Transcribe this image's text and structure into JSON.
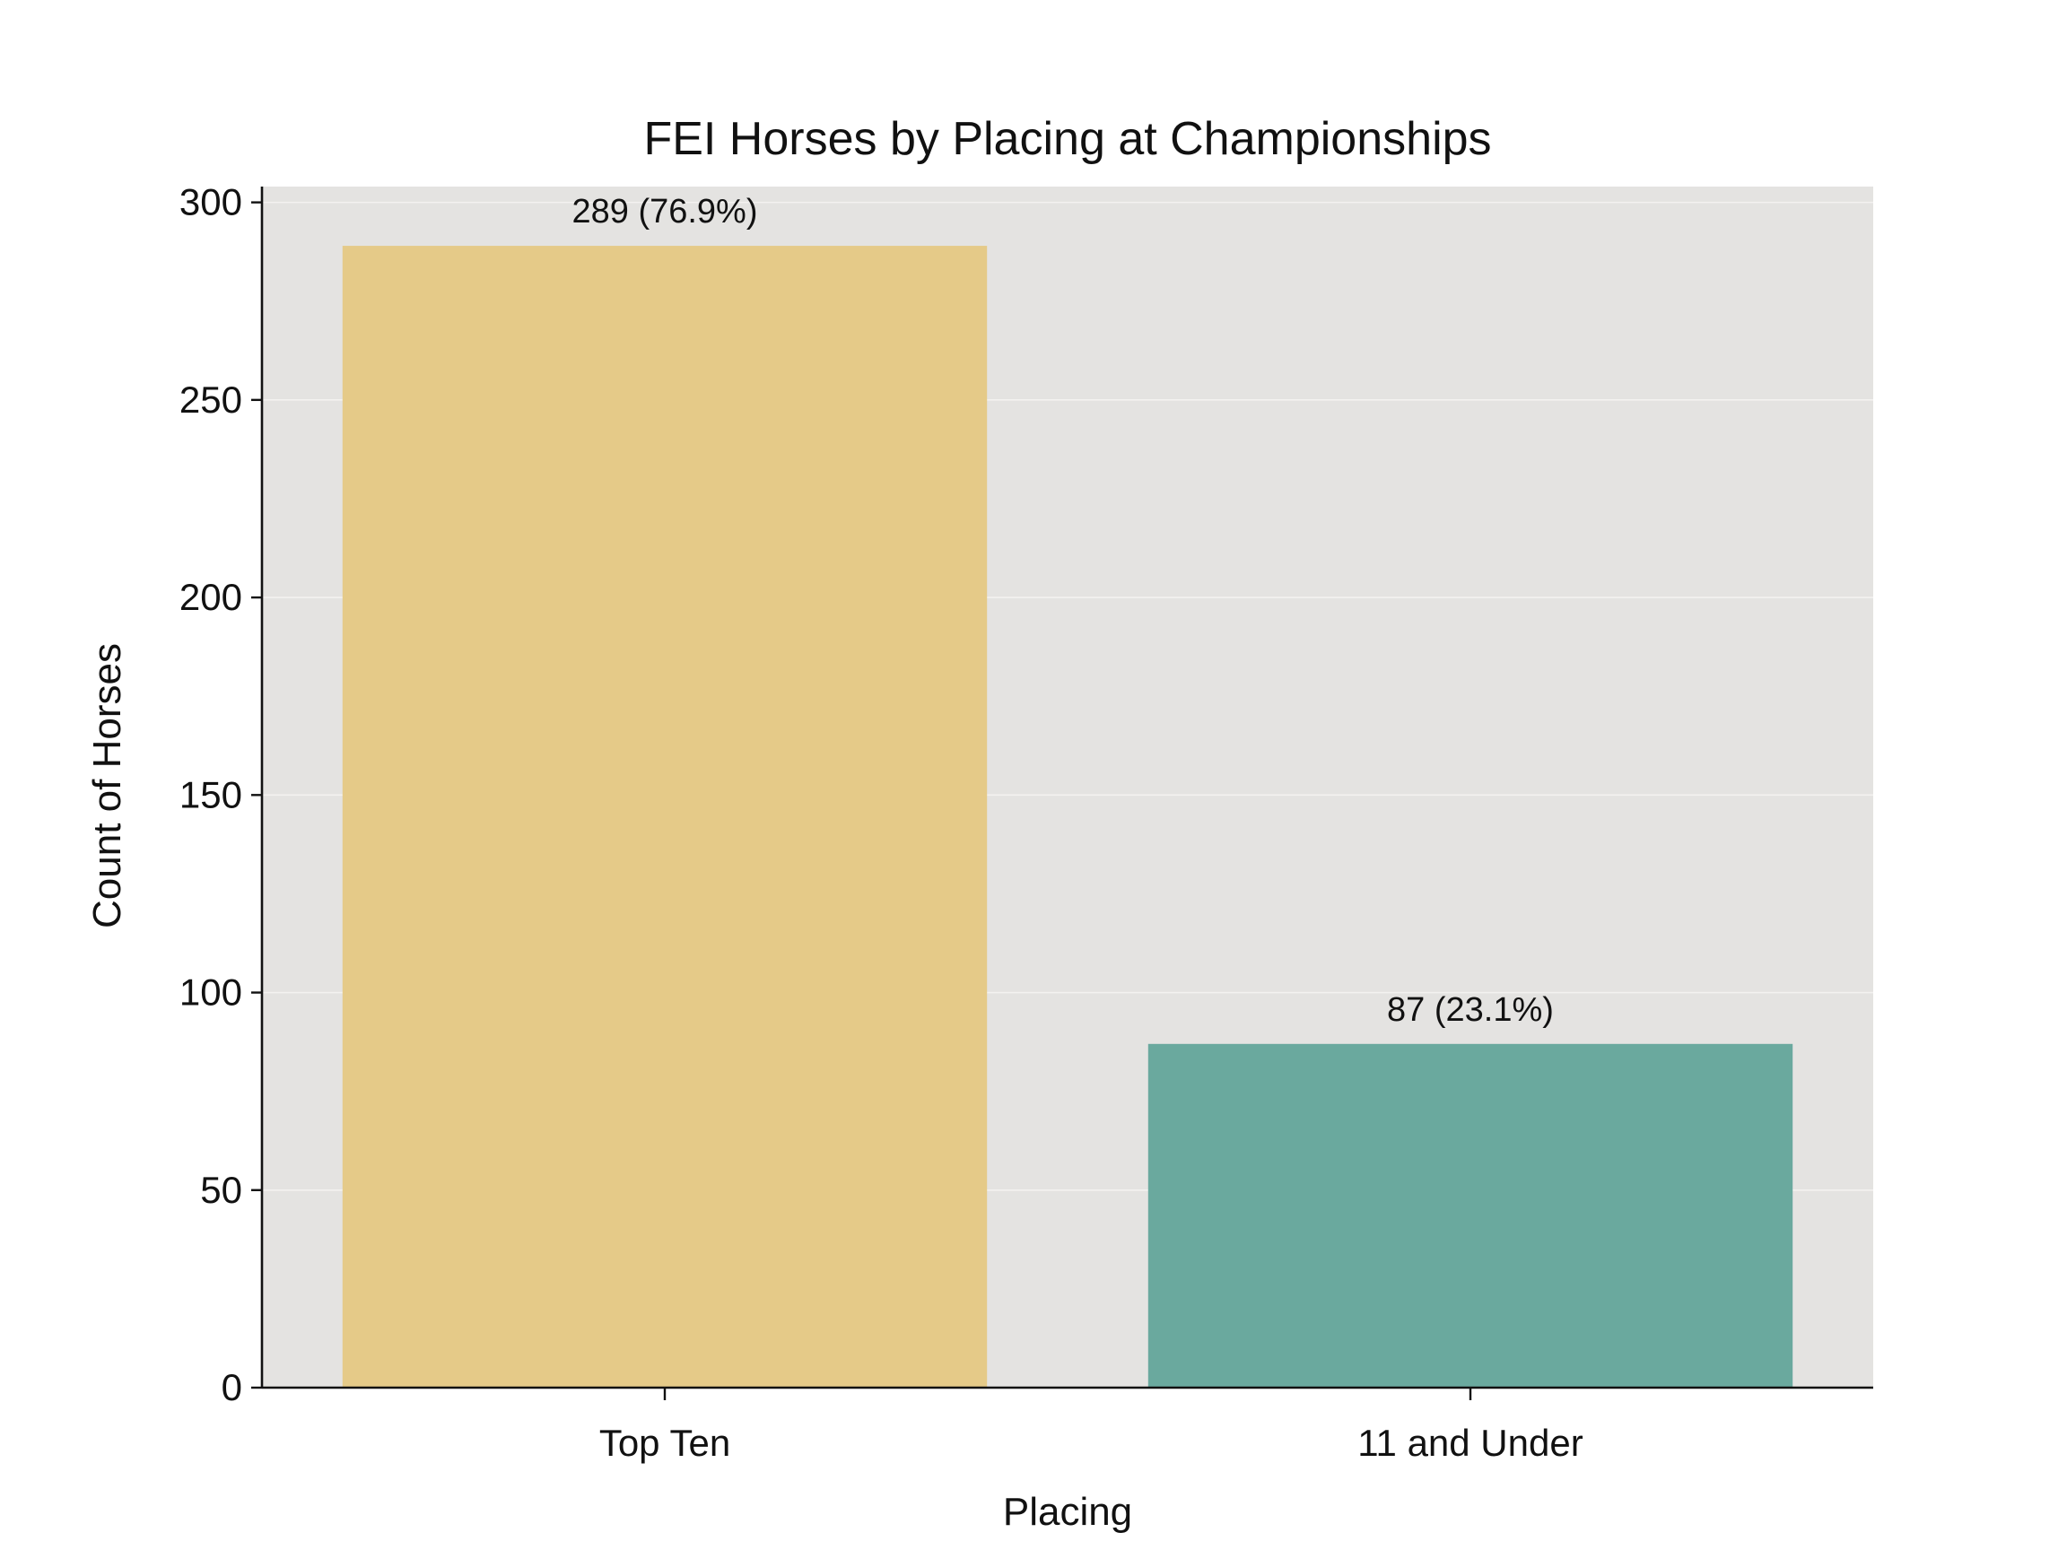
{
  "chart_data": {
    "type": "bar",
    "title": "FEI Horses by Placing at Championships",
    "xlabel": "Placing",
    "ylabel": "Count of Horses",
    "categories": [
      "Top Ten",
      "11 and Under"
    ],
    "values": [
      289,
      87
    ],
    "data_labels": [
      "289 (76.9%)",
      "87 (23.1%)"
    ],
    "bar_colors": [
      "#e5ca88",
      "#6aa99e"
    ],
    "ylim": [
      0,
      304
    ],
    "yticks": [
      0,
      50,
      100,
      150,
      200,
      250,
      300
    ],
    "grid": true,
    "plot_background": "#e4e3e1",
    "grid_color": "#f3f2f0",
    "axis_color": "#111111"
  }
}
